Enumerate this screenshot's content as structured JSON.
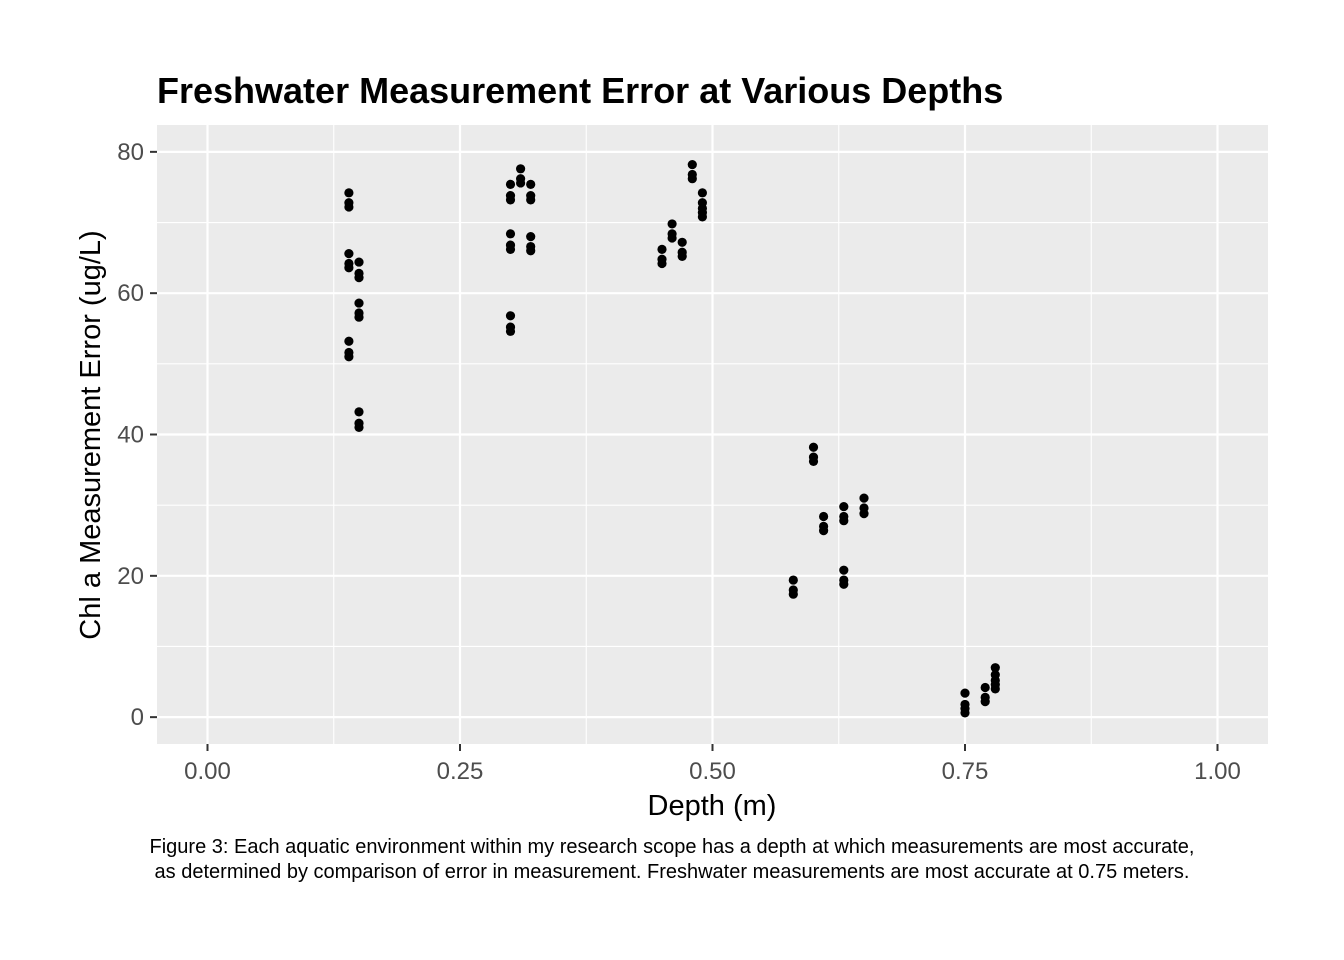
{
  "chart_data": {
    "type": "scatter",
    "title": "Freshwater Measurement Error at Various Depths",
    "xlabel": "Depth (m)",
    "ylabel": "Chl a Measurement Error (ug/L)",
    "xlim": [
      -0.05,
      1.05
    ],
    "ylim": [
      -3.8,
      83.8
    ],
    "x_ticks": [
      0.0,
      0.25,
      0.5,
      0.75,
      1.0
    ],
    "x_tick_labels": [
      "0.00",
      "0.25",
      "0.50",
      "0.75",
      "1.00"
    ],
    "y_ticks": [
      0,
      20,
      40,
      60,
      80
    ],
    "y_tick_labels": [
      "0",
      "20",
      "40",
      "60",
      "80"
    ],
    "grid": true,
    "panel_color": "#ebebeb",
    "grid_color": "#ffffff",
    "point_color": "#000000",
    "points": [
      {
        "x": 0.14,
        "y": 74.2
      },
      {
        "x": 0.14,
        "y": 72.8
      },
      {
        "x": 0.14,
        "y": 72.2
      },
      {
        "x": 0.14,
        "y": 65.6
      },
      {
        "x": 0.14,
        "y": 64.2
      },
      {
        "x": 0.14,
        "y": 63.6
      },
      {
        "x": 0.14,
        "y": 53.2
      },
      {
        "x": 0.14,
        "y": 51.6
      },
      {
        "x": 0.14,
        "y": 51.0
      },
      {
        "x": 0.15,
        "y": 64.4
      },
      {
        "x": 0.15,
        "y": 62.8
      },
      {
        "x": 0.15,
        "y": 62.2
      },
      {
        "x": 0.15,
        "y": 58.6
      },
      {
        "x": 0.15,
        "y": 57.2
      },
      {
        "x": 0.15,
        "y": 56.6
      },
      {
        "x": 0.15,
        "y": 43.2
      },
      {
        "x": 0.15,
        "y": 41.6
      },
      {
        "x": 0.15,
        "y": 41.0
      },
      {
        "x": 0.3,
        "y": 75.4
      },
      {
        "x": 0.3,
        "y": 73.8
      },
      {
        "x": 0.3,
        "y": 73.2
      },
      {
        "x": 0.3,
        "y": 68.4
      },
      {
        "x": 0.3,
        "y": 66.8
      },
      {
        "x": 0.3,
        "y": 66.2
      },
      {
        "x": 0.3,
        "y": 56.8
      },
      {
        "x": 0.3,
        "y": 55.2
      },
      {
        "x": 0.3,
        "y": 54.6
      },
      {
        "x": 0.31,
        "y": 77.6
      },
      {
        "x": 0.31,
        "y": 76.2
      },
      {
        "x": 0.31,
        "y": 75.6
      },
      {
        "x": 0.32,
        "y": 75.4
      },
      {
        "x": 0.32,
        "y": 73.8
      },
      {
        "x": 0.32,
        "y": 73.2
      },
      {
        "x": 0.32,
        "y": 68.0
      },
      {
        "x": 0.32,
        "y": 66.6
      },
      {
        "x": 0.32,
        "y": 66.0
      },
      {
        "x": 0.45,
        "y": 66.2
      },
      {
        "x": 0.45,
        "y": 64.8
      },
      {
        "x": 0.45,
        "y": 64.2
      },
      {
        "x": 0.46,
        "y": 69.8
      },
      {
        "x": 0.46,
        "y": 68.4
      },
      {
        "x": 0.46,
        "y": 67.8
      },
      {
        "x": 0.47,
        "y": 67.2
      },
      {
        "x": 0.47,
        "y": 65.8
      },
      {
        "x": 0.47,
        "y": 65.2
      },
      {
        "x": 0.48,
        "y": 78.2
      },
      {
        "x": 0.48,
        "y": 76.8
      },
      {
        "x": 0.48,
        "y": 76.2
      },
      {
        "x": 0.49,
        "y": 74.2
      },
      {
        "x": 0.49,
        "y": 72.8
      },
      {
        "x": 0.49,
        "y": 72.0
      },
      {
        "x": 0.49,
        "y": 71.4
      },
      {
        "x": 0.49,
        "y": 70.8
      },
      {
        "x": 0.58,
        "y": 19.4
      },
      {
        "x": 0.58,
        "y": 18.0
      },
      {
        "x": 0.58,
        "y": 17.4
      },
      {
        "x": 0.6,
        "y": 38.2
      },
      {
        "x": 0.6,
        "y": 36.8
      },
      {
        "x": 0.6,
        "y": 36.2
      },
      {
        "x": 0.61,
        "y": 28.4
      },
      {
        "x": 0.61,
        "y": 27.0
      },
      {
        "x": 0.61,
        "y": 26.4
      },
      {
        "x": 0.63,
        "y": 29.8
      },
      {
        "x": 0.63,
        "y": 28.4
      },
      {
        "x": 0.63,
        "y": 27.8
      },
      {
        "x": 0.63,
        "y": 20.8
      },
      {
        "x": 0.63,
        "y": 19.4
      },
      {
        "x": 0.63,
        "y": 18.8
      },
      {
        "x": 0.65,
        "y": 31.0
      },
      {
        "x": 0.65,
        "y": 29.6
      },
      {
        "x": 0.65,
        "y": 28.8
      },
      {
        "x": 0.75,
        "y": 3.4
      },
      {
        "x": 0.75,
        "y": 1.8
      },
      {
        "x": 0.75,
        "y": 1.2
      },
      {
        "x": 0.75,
        "y": 0.6
      },
      {
        "x": 0.77,
        "y": 4.2
      },
      {
        "x": 0.77,
        "y": 2.8
      },
      {
        "x": 0.77,
        "y": 2.2
      },
      {
        "x": 0.78,
        "y": 7.0
      },
      {
        "x": 0.78,
        "y": 6.0
      },
      {
        "x": 0.78,
        "y": 5.2
      },
      {
        "x": 0.78,
        "y": 4.6
      },
      {
        "x": 0.78,
        "y": 4.0
      }
    ]
  },
  "caption": {
    "line1": "Figure 3: Each aquatic environment within my research scope has a depth at which measurements are most accurate,",
    "line2": "as determined by comparison of error in measurement. Freshwater measurements are most accurate at 0.75 meters."
  }
}
